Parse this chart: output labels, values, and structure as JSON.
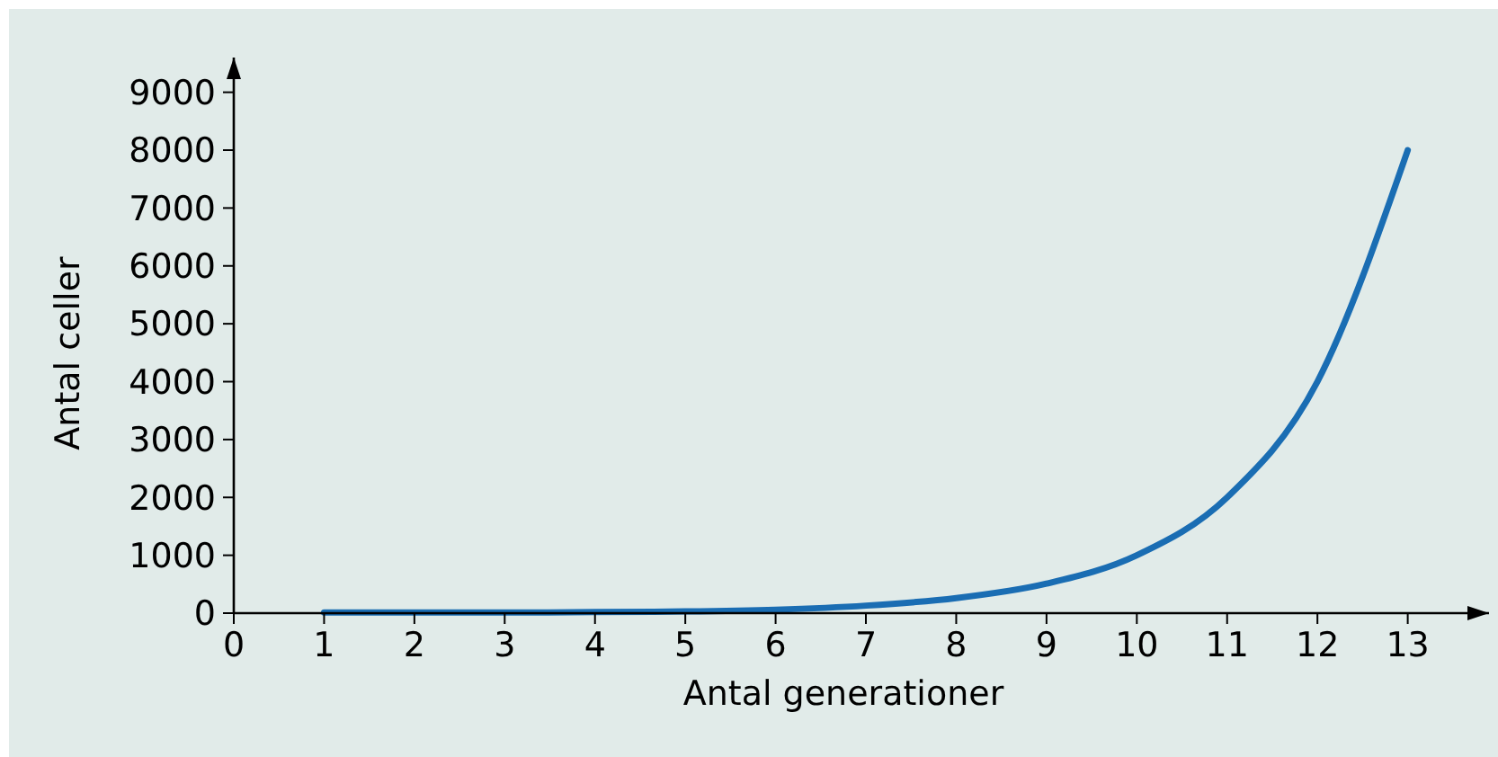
{
  "chart_data": {
    "type": "line",
    "xlabel": "Antal generationer",
    "ylabel": "Antal celler",
    "x": [
      1,
      2,
      3,
      4,
      5,
      6,
      7,
      8,
      9,
      10,
      11,
      12,
      13
    ],
    "series": [
      {
        "color": "#1a6db3",
        "values": [
          10,
          10,
          10,
          20,
          30,
          60,
          130,
          260,
          510,
          1000,
          2000,
          4000,
          8000
        ]
      }
    ],
    "xlim": [
      0,
      13.9
    ],
    "ylim": [
      0,
      9600
    ],
    "xticks": [
      0,
      1,
      2,
      3,
      4,
      5,
      6,
      7,
      8,
      9,
      10,
      11,
      12,
      13
    ],
    "yticks": [
      0,
      1000,
      2000,
      3000,
      4000,
      5000,
      6000,
      7000,
      8000,
      9000
    ],
    "grid": false,
    "marker": "none",
    "line_style": "solid"
  }
}
